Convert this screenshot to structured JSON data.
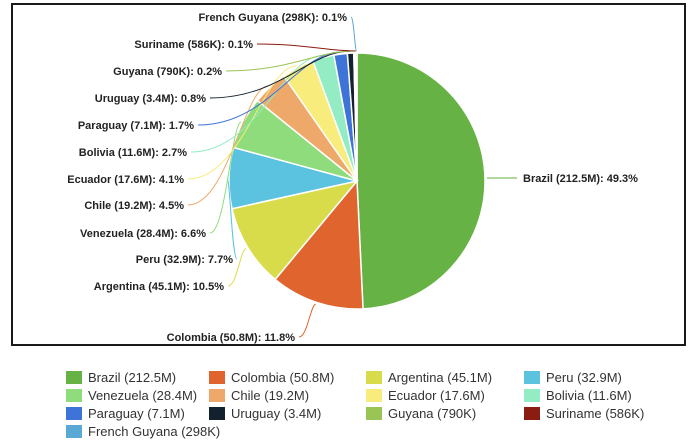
{
  "chart_data": {
    "type": "pie",
    "slices": [
      {
        "name": "Brazil",
        "population": "212.5M",
        "value": 49.3,
        "color": "#66b245",
        "label": "Brazil (212.5M): 49.3%",
        "legend": "Brazil (212.5M)"
      },
      {
        "name": "Colombia",
        "population": "50.8M",
        "value": 11.8,
        "color": "#e0642e",
        "label": "Colombia (50.8M): 11.8%",
        "legend": "Colombia (50.8M)"
      },
      {
        "name": "Argentina",
        "population": "45.1M",
        "value": 10.5,
        "color": "#d9dc4a",
        "label": "Argentina (45.1M): 10.5%",
        "legend": "Argentina (45.1M)"
      },
      {
        "name": "Peru",
        "population": "32.9M",
        "value": 7.7,
        "color": "#5bc3e0",
        "label": "Peru (32.9M): 7.7%",
        "legend": "Peru (32.9M)"
      },
      {
        "name": "Venezuela",
        "population": "28.4M",
        "value": 6.6,
        "color": "#8fdc7c",
        "label": "Venezuela (28.4M): 6.6%",
        "legend": "Venezuela (28.4M)"
      },
      {
        "name": "Chile",
        "population": "19.2M",
        "value": 4.5,
        "color": "#eea86a",
        "label": "Chile (19.2M): 4.5%",
        "legend": "Chile (19.2M)"
      },
      {
        "name": "Ecuador",
        "population": "17.6M",
        "value": 4.1,
        "color": "#f8ec7c",
        "label": "Ecuador (17.6M): 4.1%",
        "legend": "Ecuador (17.6M)"
      },
      {
        "name": "Bolivia",
        "population": "11.6M",
        "value": 2.7,
        "color": "#93ecc4",
        "label": "Bolivia (11.6M): 2.7%",
        "legend": "Bolivia (11.6M)"
      },
      {
        "name": "Paraguay",
        "population": "7.1M",
        "value": 1.7,
        "color": "#3e74d8",
        "label": "Paraguay (7.1M): 1.7%",
        "legend": "Paraguay (7.1M)"
      },
      {
        "name": "Uruguay",
        "population": "3.4M",
        "value": 0.8,
        "color": "#13202e",
        "label": "Uruguay (3.4M): 0.8%",
        "legend": "Uruguay (3.4M)"
      },
      {
        "name": "Guyana",
        "population": "790K",
        "value": 0.2,
        "color": "#9ac454",
        "label": "Guyana (790K): 0.2%",
        "legend": "Guyana (790K)"
      },
      {
        "name": "Suriname",
        "population": "586K",
        "value": 0.1,
        "color": "#8a1c12",
        "label": "Suriname (586K): 0.1%",
        "legend": "Suriname (586K)"
      },
      {
        "name": "French Guyana",
        "population": "298K",
        "value": 0.1,
        "color": "#5aa9d4",
        "label": "French Guyana (298K): 0.1%",
        "legend": "French Guyana (298K)"
      }
    ],
    "start_angle": "12 o'clock",
    "direction": "clockwise",
    "legend_position": "bottom"
  }
}
